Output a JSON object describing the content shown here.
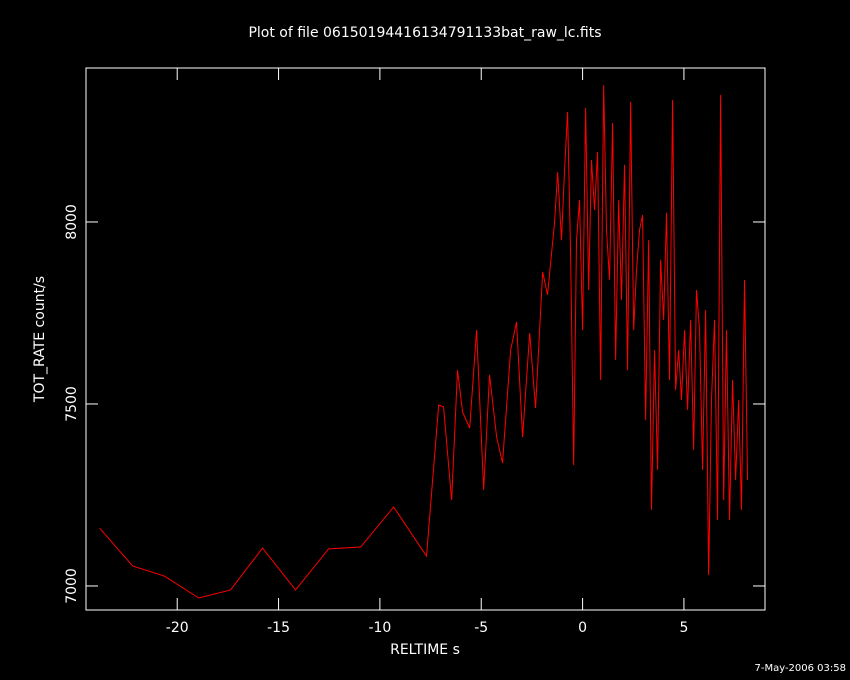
{
  "chart_data": {
    "type": "line",
    "title": "Plot of file 06150194416134791133bat_raw_lc.fits",
    "x_label": "RELTIME   s",
    "y_label": "TOT_RATE   count/s",
    "footer": "7-May-2006 03:58",
    "xlim": [
      -24.5,
      9
    ],
    "ylim": [
      6934,
      8423
    ],
    "xticks": [
      -20,
      -15,
      -10,
      -5,
      0,
      5
    ],
    "yticks": [
      7000,
      7500,
      8000
    ],
    "axis_color": "#ffffff",
    "series": [
      {
        "name": "TOT_RATE",
        "color": "#ff0000",
        "x": [
          -23.83,
          -22.2,
          -20.62,
          -18.94,
          -17.37,
          -15.79,
          -14.16,
          -12.53,
          -10.95,
          -9.32,
          -7.7,
          -7.1,
          -6.86,
          -6.46,
          -6.17,
          -5.92,
          -5.57,
          -5.23,
          -4.88,
          -4.59,
          -4.24,
          -3.95,
          -3.55,
          -3.26,
          -2.96,
          -2.61,
          -2.32,
          -1.97,
          -1.73,
          -1.38,
          -1.23,
          -1.04,
          -0.89,
          -0.74,
          -0.59,
          -0.44,
          -0.3,
          -0.15,
          0,
          0.15,
          0.3,
          0.44,
          0.59,
          0.74,
          0.89,
          1.04,
          1.18,
          1.33,
          1.48,
          1.63,
          1.78,
          1.92,
          2.07,
          2.22,
          2.37,
          2.52,
          2.66,
          2.81,
          2.96,
          3.11,
          3.26,
          3.4,
          3.55,
          3.7,
          3.85,
          4.0,
          4.14,
          4.29,
          4.44,
          4.59,
          4.74,
          4.88,
          5.03,
          5.18,
          5.33,
          5.48,
          5.62,
          5.77,
          5.92,
          6.07,
          6.22,
          6.36,
          6.51,
          6.66,
          6.81,
          6.96,
          7.1,
          7.25,
          7.4,
          7.55,
          7.7,
          7.84,
          7.99,
          8.14
        ],
        "values": [
          7159,
          7055,
          7027,
          6967,
          6989,
          7104,
          6989,
          7102,
          7107,
          7217,
          7082,
          7497,
          7492,
          7236,
          7593,
          7478,
          7434,
          7703,
          7264,
          7580,
          7409,
          7338,
          7648,
          7725,
          7409,
          7695,
          7489,
          7863,
          7800,
          8000,
          8137,
          7950,
          8143,
          8302,
          7909,
          7332,
          7950,
          8060,
          7703,
          8313,
          7813,
          8170,
          8033,
          8192,
          7566,
          8376,
          7978,
          7841,
          8272,
          7621,
          8060,
          7786,
          8157,
          7593,
          8330,
          7703,
          7868,
          7978,
          8019,
          7456,
          7950,
          7209,
          7648,
          7319,
          7896,
          7731,
          8025,
          7566,
          8335,
          7538,
          7648,
          7511,
          7703,
          7484,
          7731,
          7374,
          7813,
          7703,
          7319,
          7758,
          7030,
          7511,
          7731,
          7181,
          8349,
          7236,
          7703,
          7181,
          7566,
          7291,
          7511,
          7209,
          7841,
          7291
        ]
      }
    ]
  }
}
